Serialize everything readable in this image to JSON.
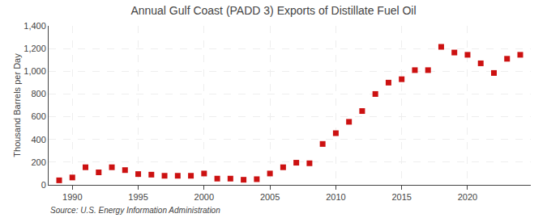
{
  "chart_data": {
    "type": "scatter",
    "title": "Annual Gulf Coast (PADD 3) Exports of Distillate Fuel Oil",
    "y_label": "Thousand Barrels per Day",
    "annotations": [
      "Source: U.S. Energy Information Administration"
    ],
    "x": [
      1989,
      1990,
      1991,
      1992,
      1993,
      1994,
      1995,
      1996,
      1997,
      1998,
      1999,
      2000,
      2001,
      2002,
      2003,
      2004,
      2005,
      2006,
      2007,
      2008,
      2009,
      2010,
      2011,
      2012,
      2013,
      2014,
      2015,
      2016,
      2017,
      2018,
      2019,
      2020,
      2021,
      2022,
      2023,
      2024
    ],
    "values": [
      40,
      65,
      155,
      110,
      155,
      130,
      95,
      90,
      80,
      80,
      80,
      100,
      55,
      55,
      45,
      50,
      100,
      155,
      195,
      190,
      360,
      455,
      555,
      650,
      800,
      900,
      930,
      1010,
      1010,
      1215,
      1165,
      1145,
      1070,
      985,
      1110,
      1145
    ],
    "color": "#cc1111",
    "marker": "square",
    "xlim": [
      1988.2,
      2024.8
    ],
    "xticks": [
      1990,
      1995,
      2000,
      2005,
      2010,
      2015,
      2020
    ],
    "ylim": [
      0,
      1400
    ],
    "yticks": [
      0,
      200,
      400,
      600,
      800,
      {
        "value": 1000,
        "label": "1,000"
      },
      {
        "value": 1200,
        "label": "1,200"
      },
      {
        "value": 1400,
        "label": "1,400"
      }
    ],
    "grid": true
  }
}
